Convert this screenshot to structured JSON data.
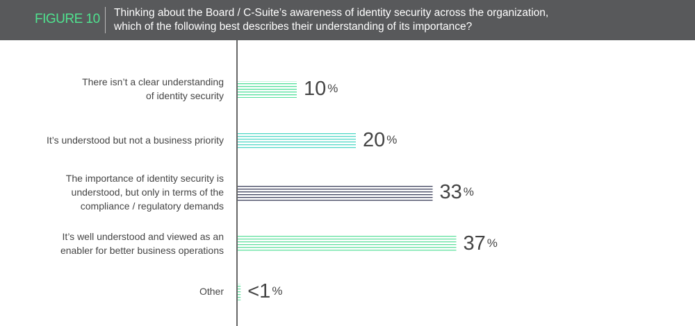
{
  "chart_data": {
    "type": "bar",
    "orientation": "horizontal",
    "figure_label": "FIGURE 10",
    "title": "Thinking about the Board / C-Suite’s awareness of identity security across the organization,\nwhich of the following best describes their understanding of its importance?",
    "categories": [
      "There isn’t a clear understanding\nof identity security",
      "It’s understood but not a business priority",
      "The importance of identity security is\nunderstood, but only in terms of the\ncompliance / regulatory demands",
      "It’s well understood and viewed as an\nenabler for better business operations",
      "Other"
    ],
    "values": [
      10,
      20,
      33,
      37,
      0.5
    ],
    "value_labels": [
      "10%",
      "20%",
      "33%",
      "37%",
      "<1%"
    ],
    "colors": [
      "#4fe09a",
      "#4fd8c6",
      "#3b3f5a",
      "#5fe09e",
      "#5fe09e"
    ]
  }
}
